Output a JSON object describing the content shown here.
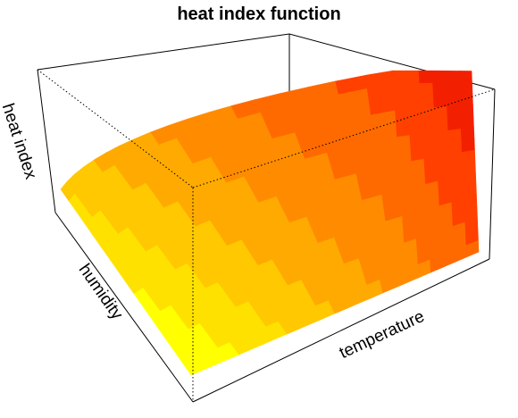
{
  "chart_data": {
    "type": "surface",
    "title": "heat index function",
    "xlabel": "temperature",
    "ylabel": "humidity",
    "zlabel": "heat index",
    "colors": [
      "#ffff00",
      "#ffe100",
      "#ffc800",
      "#ffaa00",
      "#ff8c00",
      "#ff6a00",
      "#ff4000",
      "#f22000"
    ],
    "contour_bands": 8,
    "axes_ticks": "none",
    "box": "full"
  }
}
